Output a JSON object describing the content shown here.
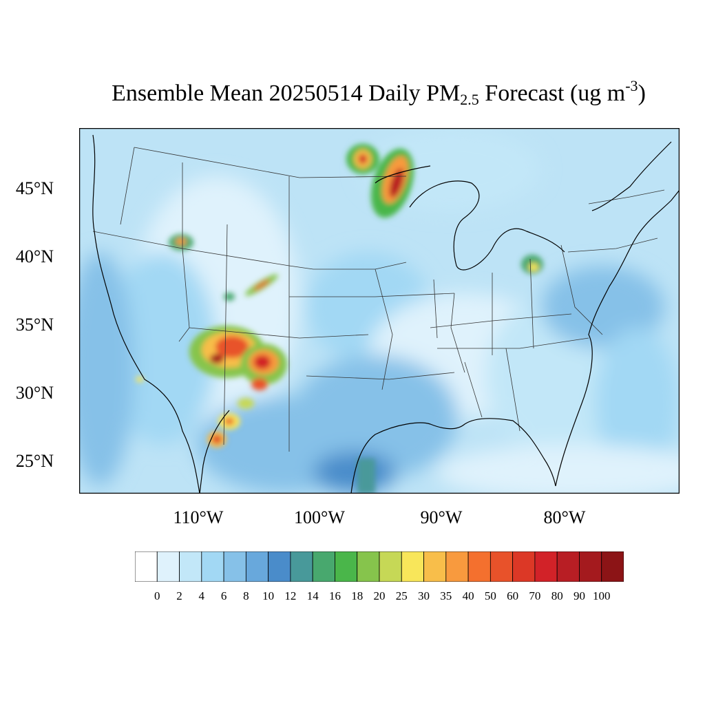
{
  "title": {
    "main": "Ensemble Mean 20250514 Daily PM",
    "subscript": "2.5",
    "units_prefix": " Forecast (ug m",
    "superscript": "-3",
    "units_suffix": ")"
  },
  "lat_labels": [
    "45°N",
    "40°N",
    "35°N",
    "30°N",
    "25°N"
  ],
  "lon_labels": [
    "110°W",
    "100°W",
    "90°W",
    "80°W"
  ],
  "colorbar": {
    "labels": [
      "0",
      "2",
      "4",
      "6",
      "8",
      "10",
      "12",
      "14",
      "16",
      "18",
      "20",
      "25",
      "30",
      "35",
      "40",
      "50",
      "60",
      "70",
      "80",
      "90",
      "100"
    ],
    "colors": [
      "#ffffff",
      "#dff2fc",
      "#c2e7f8",
      "#a2d8f4",
      "#86c1e8",
      "#68a8dc",
      "#4a8cca",
      "#48999a",
      "#48a86e",
      "#4ab64a",
      "#86c44c",
      "#c6d856",
      "#f8e65a",
      "#f8be4a",
      "#f89a3e",
      "#f4702e",
      "#e8522a",
      "#dc3826",
      "#d22228",
      "#b81e24",
      "#a41a1e",
      "#8c1416"
    ]
  },
  "colors": {
    "background": "#bde3f6"
  }
}
